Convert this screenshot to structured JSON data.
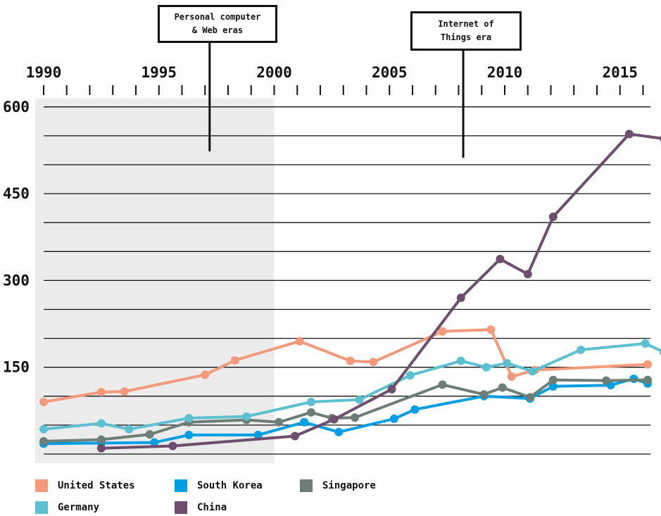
{
  "chart_data": {
    "type": "line",
    "xlim": [
      1990,
      2016
    ],
    "ylim": [
      0,
      600
    ],
    "x_ticks": [
      1990,
      1995,
      2000,
      2005,
      2010,
      2015
    ],
    "y_ticks": [
      150,
      300,
      450,
      600
    ],
    "shaded_era": [
      1990,
      2000
    ],
    "legend_position": "bottom",
    "annotations": [
      {
        "text_lines": [
          "Personal computer",
          "& Web eras"
        ],
        "x": 1997.2
      },
      {
        "text_lines": [
          "Internet of",
          "Things era"
        ],
        "x": 2008.2
      }
    ],
    "series": [
      {
        "name": "United States",
        "color": "#F4997A",
        "points": [
          [
            1990,
            90
          ],
          [
            1992.5,
            107
          ],
          [
            1993.5,
            108
          ],
          [
            1997,
            137
          ],
          [
            1998.3,
            162
          ],
          [
            2001.1,
            195
          ],
          [
            2003.3,
            161
          ],
          [
            2004.3,
            159
          ],
          [
            2007.3,
            212
          ],
          [
            2009.4,
            215
          ],
          [
            2010.3,
            134
          ],
          [
            2011.3,
            145
          ],
          [
            2016.2,
            155
          ]
        ]
      },
      {
        "name": "South Korea",
        "color": "#009FE3",
        "points": [
          [
            1990,
            18
          ],
          [
            1992.5,
            19
          ],
          [
            1994.8,
            20
          ],
          [
            1996.3,
            33
          ],
          [
            1999.3,
            33
          ],
          [
            2001.3,
            55
          ],
          [
            2002.8,
            38
          ],
          [
            2005.2,
            61
          ],
          [
            2006.1,
            77
          ],
          [
            2009.1,
            100
          ],
          [
            2011.1,
            96
          ],
          [
            2012.1,
            117
          ],
          [
            2014.6,
            119
          ],
          [
            2015.6,
            130
          ],
          [
            2016.2,
            122
          ]
        ]
      },
      {
        "name": "Singapore",
        "color": "#6C7E76",
        "points": [
          [
            1990,
            22
          ],
          [
            1992.5,
            25
          ],
          [
            1994.6,
            34
          ],
          [
            1996.3,
            55
          ],
          [
            1998.8,
            59
          ],
          [
            2000.2,
            55
          ],
          [
            2001.6,
            72
          ],
          [
            2002.5,
            62
          ],
          [
            2003.5,
            63
          ],
          [
            2007.3,
            120
          ],
          [
            2009.1,
            103
          ],
          [
            2009.9,
            115
          ],
          [
            2011.1,
            98
          ],
          [
            2012.1,
            128
          ],
          [
            2014.4,
            127
          ],
          [
            2016.2,
            128
          ]
        ]
      },
      {
        "name": "Germany",
        "color": "#5DC0D0",
        "points": [
          [
            1990,
            43
          ],
          [
            1992.5,
            53
          ],
          [
            1993.7,
            43
          ],
          [
            1996.3,
            62
          ],
          [
            1998.8,
            65
          ],
          [
            2001.6,
            90
          ],
          [
            2003.7,
            94
          ],
          [
            2005.9,
            136
          ],
          [
            2008.1,
            161
          ],
          [
            2009.2,
            150
          ],
          [
            2010.1,
            157
          ],
          [
            2011.2,
            143
          ],
          [
            2013.3,
            180
          ],
          [
            2016.1,
            191
          ],
          [
            2016.9,
            176
          ]
        ]
      },
      {
        "name": "China",
        "color": "#6D4E6C",
        "points": [
          [
            1992.5,
            10
          ],
          [
            1995.6,
            14
          ],
          [
            2000.9,
            31
          ],
          [
            2002.6,
            60
          ],
          [
            2005.1,
            112
          ],
          [
            2008.1,
            270
          ],
          [
            2009.8,
            337
          ],
          [
            2011.0,
            311
          ],
          [
            2012.1,
            410
          ],
          [
            2015.4,
            553
          ],
          [
            2016.9,
            545
          ]
        ]
      }
    ]
  }
}
